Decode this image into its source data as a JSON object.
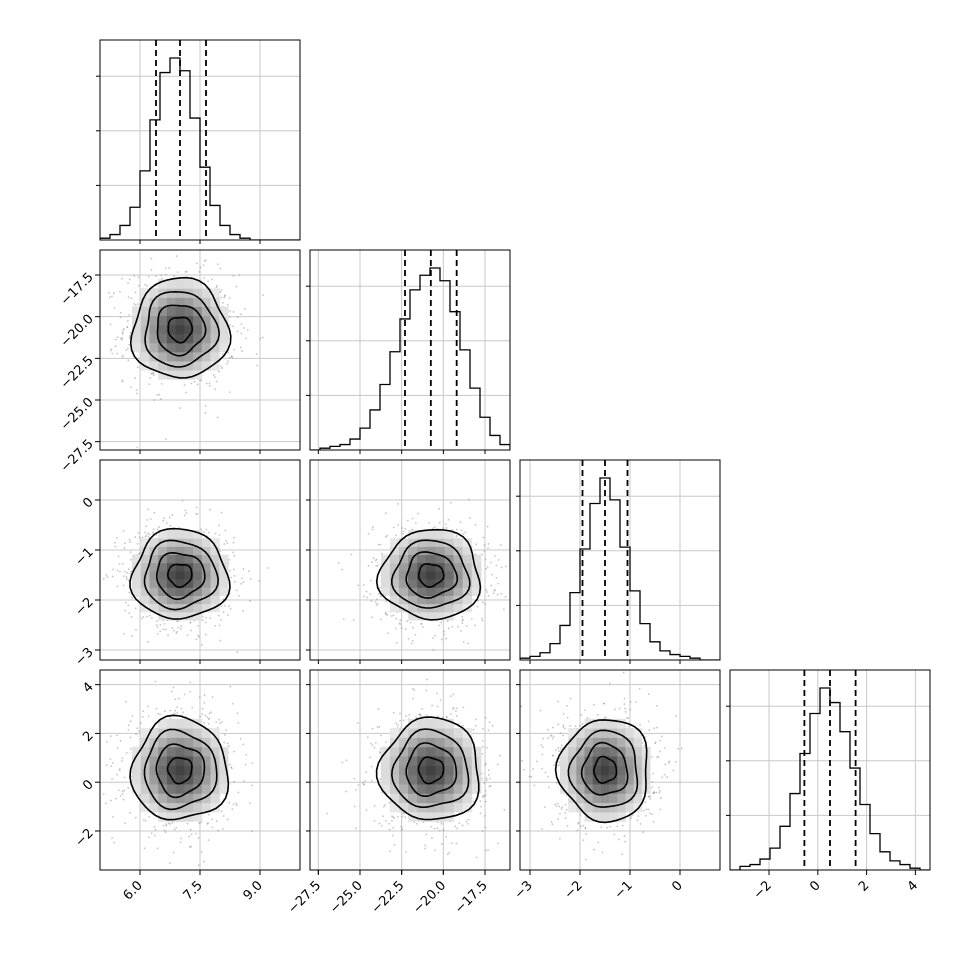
{
  "chart_data": {
    "type": "corner",
    "n_params": 4,
    "grid": true,
    "quantile_lines": [
      0.16,
      0.5,
      0.84
    ],
    "colors": {
      "line": "#000000",
      "scatter": "#7f7f7f",
      "grid": "#c8c8c8"
    },
    "params": [
      {
        "range": [
          5.0,
          10.0
        ],
        "ticks": [
          6.0,
          7.5,
          9.0
        ],
        "tick_labels": [
          "6.0",
          "7.5",
          "9.0"
        ],
        "quantiles": [
          6.4,
          7.0,
          7.65
        ],
        "mean": 7.0,
        "sd": 0.6
      },
      {
        "range": [
          -28.0,
          -16.0
        ],
        "ticks": [
          -27.5,
          -25.0,
          -22.5,
          -20.0,
          -17.5
        ],
        "tick_labels": [
          "−27.5",
          "−25.0",
          "−22.5",
          "−20.0",
          "−17.5"
        ],
        "quantiles": [
          -22.3,
          -20.75,
          -19.2
        ],
        "mean": -20.75,
        "sd": 1.5
      },
      {
        "range": [
          -3.2,
          0.8
        ],
        "ticks": [
          -3,
          -2,
          -1,
          0
        ],
        "tick_labels": [
          "−3",
          "−2",
          "−1",
          "0"
        ],
        "quantiles": [
          -1.95,
          -1.5,
          -1.05
        ],
        "mean": -1.5,
        "sd": 0.45
      },
      {
        "range": [
          -3.6,
          4.6
        ],
        "ticks": [
          -2,
          0,
          2,
          4
        ],
        "tick_labels": [
          "−2",
          "0",
          "2",
          "4"
        ],
        "quantiles": [
          -0.55,
          0.5,
          1.55
        ],
        "mean": 0.5,
        "sd": 1.05
      }
    ],
    "histograms": [
      {
        "param": 0,
        "bins": 20,
        "counts": [
          1,
          3,
          8,
          18,
          38,
          66,
          92,
          100,
          93,
          67,
          40,
          19,
          8,
          3,
          1,
          0,
          0,
          0,
          0,
          0
        ]
      },
      {
        "param": 1,
        "bins": 20,
        "counts": [
          0,
          1,
          2,
          3,
          6,
          12,
          22,
          36,
          54,
          72,
          88,
          96,
          100,
          93,
          76,
          55,
          34,
          18,
          8,
          3
        ]
      },
      {
        "param": 2,
        "bins": 20,
        "counts": [
          1,
          2,
          4,
          9,
          19,
          37,
          61,
          86,
          100,
          88,
          62,
          38,
          20,
          10,
          5,
          3,
          2,
          1,
          0,
          0
        ]
      },
      {
        "param": 3,
        "bins": 20,
        "counts": [
          0,
          2,
          3,
          6,
          12,
          24,
          42,
          64,
          86,
          100,
          92,
          76,
          56,
          36,
          20,
          10,
          5,
          3,
          1,
          0
        ]
      }
    ],
    "pairs": [
      {
        "x": 0,
        "y": 1,
        "rho": -0.05
      },
      {
        "x": 0,
        "y": 2,
        "rho": -0.05
      },
      {
        "x": 1,
        "y": 2,
        "rho": 0.0
      },
      {
        "x": 0,
        "y": 3,
        "rho": 0.0
      },
      {
        "x": 1,
        "y": 3,
        "rho": 0.0
      },
      {
        "x": 2,
        "y": 3,
        "rho": 0.0
      }
    ],
    "contour_levels_sigma": [
      0.5,
      1.0,
      1.5,
      2.0
    ]
  }
}
